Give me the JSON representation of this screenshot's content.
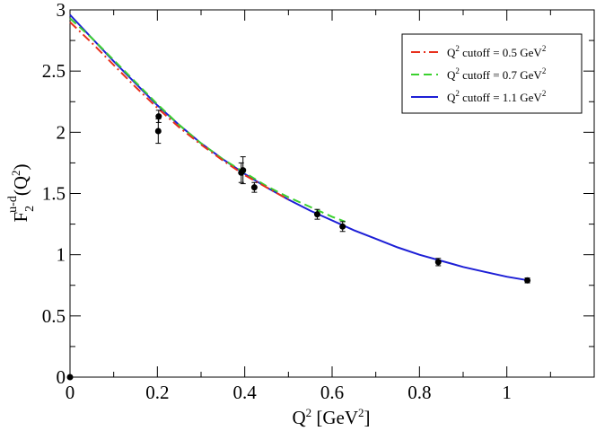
{
  "chart_data": {
    "type": "line",
    "xlabel": {
      "base": "Q",
      "sup": "2",
      "rest": " [GeV",
      "sup2": "2",
      "end": "]"
    },
    "ylabel": {
      "base": "F",
      "sub": "2",
      "sup": "u-d",
      "open": "(Q",
      "sup2": "2",
      "close": ")"
    },
    "xlim": [
      0,
      1.2
    ],
    "ylim": [
      0,
      3
    ],
    "x_ticks": [
      {
        "value": 0,
        "label": "0"
      },
      {
        "value": 0.2,
        "label": "0.2"
      },
      {
        "value": 0.4,
        "label": "0.4"
      },
      {
        "value": 0.6,
        "label": "0.6"
      },
      {
        "value": 0.8,
        "label": "0.8"
      },
      {
        "value": 1.0,
        "label": "1"
      }
    ],
    "x_minor_ticks": [
      0.1,
      0.3,
      0.5,
      0.7,
      0.9,
      1.1
    ],
    "y_ticks": [
      {
        "value": 0,
        "label": "0"
      },
      {
        "value": 0.5,
        "label": "0.5"
      },
      {
        "value": 1.0,
        "label": "1"
      },
      {
        "value": 1.5,
        "label": "1.5"
      },
      {
        "value": 2.0,
        "label": "2"
      },
      {
        "value": 2.5,
        "label": "2.5"
      },
      {
        "value": 3.0,
        "label": "3"
      }
    ],
    "y_minor_ticks": [
      0.25,
      0.75,
      1.25,
      1.75,
      2.25,
      2.75
    ],
    "legend_position": "top-right",
    "series": [
      {
        "name": "Q² cutoff = 0.5 GeV²",
        "legend": {
          "a": "Q",
          "a_sup": "2",
          "b": " cutoff = 0.5 GeV",
          "b_sup": "2"
        },
        "color": "#e8301c",
        "style": "dash-dot",
        "x": [
          0.0,
          0.05,
          0.1,
          0.15,
          0.2,
          0.25,
          0.3,
          0.35,
          0.4,
          0.45,
          0.5
        ],
        "y": [
          2.9,
          2.73,
          2.55,
          2.37,
          2.2,
          2.04,
          1.9,
          1.77,
          1.65,
          1.55,
          1.45
        ]
      },
      {
        "name": "Q² cutoff = 0.7 GeV²",
        "legend": {
          "a": "Q",
          "a_sup": "2",
          "b": " cutoff = 0.7 GeV",
          "b_sup": "2"
        },
        "color": "#3ad12e",
        "style": "dashed",
        "x": [
          0.0,
          0.05,
          0.1,
          0.15,
          0.2,
          0.25,
          0.3,
          0.35,
          0.4,
          0.45,
          0.5,
          0.55,
          0.6,
          0.63
        ],
        "y": [
          2.93,
          2.77,
          2.59,
          2.41,
          2.23,
          2.06,
          1.91,
          1.78,
          1.67,
          1.56,
          1.47,
          1.39,
          1.31,
          1.27
        ]
      },
      {
        "name": "Q² cutoff = 1.1 GeV²",
        "legend": {
          "a": "Q",
          "a_sup": "2",
          "b": " cutoff = 1.1 GeV",
          "b_sup": "2"
        },
        "color": "#1d1fd6",
        "style": "solid",
        "x": [
          0.0,
          0.05,
          0.1,
          0.15,
          0.2,
          0.25,
          0.3,
          0.35,
          0.4,
          0.45,
          0.5,
          0.55,
          0.6,
          0.65,
          0.7,
          0.75,
          0.8,
          0.85,
          0.9,
          0.95,
          1.0,
          1.05
        ],
        "y": [
          2.96,
          2.77,
          2.58,
          2.4,
          2.22,
          2.06,
          1.91,
          1.78,
          1.66,
          1.55,
          1.45,
          1.36,
          1.28,
          1.2,
          1.13,
          1.06,
          1.0,
          0.95,
          0.9,
          0.86,
          0.82,
          0.79
        ]
      }
    ],
    "data_points": [
      {
        "x": 0.0,
        "y": 0.0,
        "err": 0.0
      },
      {
        "x": 0.202,
        "y": 2.01,
        "err": 0.1
      },
      {
        "x": 0.203,
        "y": 2.13,
        "err": 0.05
      },
      {
        "x": 0.392,
        "y": 1.67,
        "err": 0.08
      },
      {
        "x": 0.396,
        "y": 1.69,
        "err": 0.11
      },
      {
        "x": 0.422,
        "y": 1.55,
        "err": 0.04
      },
      {
        "x": 0.566,
        "y": 1.33,
        "err": 0.04
      },
      {
        "x": 0.624,
        "y": 1.23,
        "err": 0.04
      },
      {
        "x": 0.843,
        "y": 0.94,
        "err": 0.03
      },
      {
        "x": 1.047,
        "y": 0.79,
        "err": 0.02
      }
    ]
  }
}
